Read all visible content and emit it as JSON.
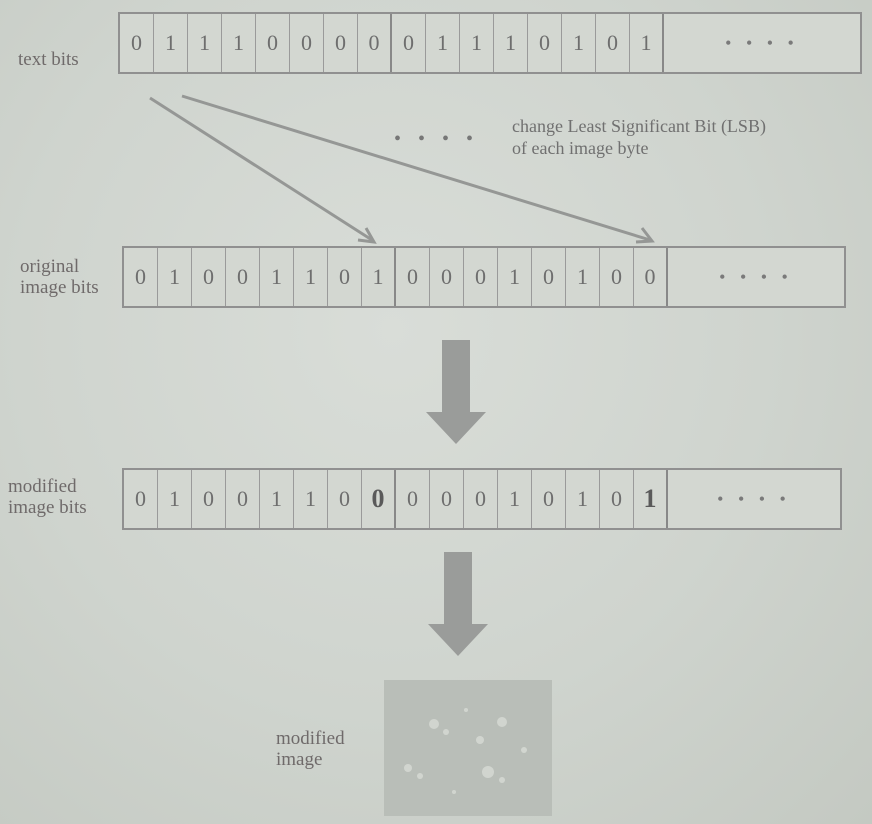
{
  "rows": {
    "text": {
      "label": "text bits",
      "bits": [
        "0",
        "1",
        "1",
        "1",
        "0",
        "0",
        "0",
        "0",
        "0",
        "1",
        "1",
        "1",
        "0",
        "1",
        "0",
        "1"
      ],
      "tail": "• • • •"
    },
    "original": {
      "label_line1": "original",
      "label_line2": "image bits",
      "bits": [
        "0",
        "1",
        "0",
        "0",
        "1",
        "1",
        "0",
        "1",
        "0",
        "0",
        "0",
        "1",
        "0",
        "1",
        "0",
        "0"
      ],
      "tail": "• • • •"
    },
    "modified": {
      "label_line1": "modified",
      "label_line2": "image bits",
      "bits": [
        "0",
        "1",
        "0",
        "0",
        "1",
        "1",
        "0",
        "0",
        "0",
        "0",
        "0",
        "1",
        "0",
        "1",
        "0",
        "1"
      ],
      "tail": "• • • •"
    }
  },
  "note": {
    "line1": "change Least Significant Bit (LSB)",
    "line2": "of each image byte"
  },
  "ellipsis": "• • • •",
  "image": {
    "label_line1": "modified",
    "label_line2": "image"
  }
}
